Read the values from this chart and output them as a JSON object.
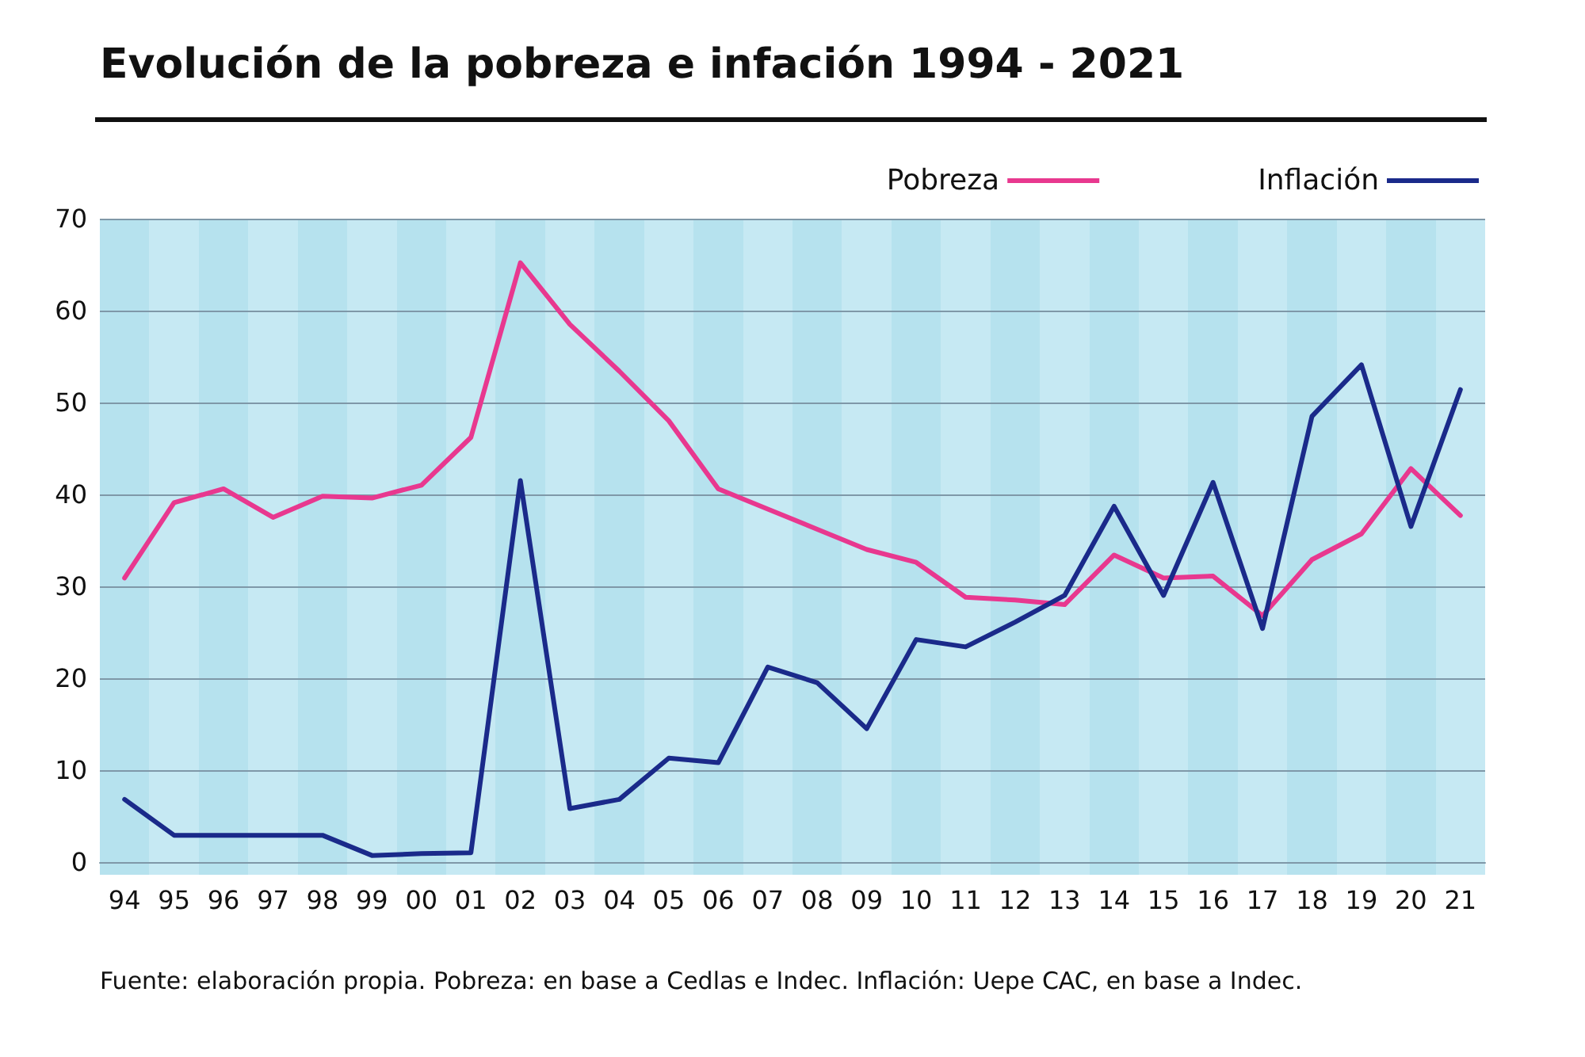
{
  "chart_data": {
    "type": "line",
    "title": "Evolución de la pobreza e infación 1994 - 2021",
    "categories": [
      "94",
      "95",
      "96",
      "97",
      "98",
      "99",
      "00",
      "01",
      "02",
      "03",
      "04",
      "05",
      "06",
      "07",
      "08",
      "09",
      "10",
      "11",
      "12",
      "13",
      "14",
      "15",
      "16",
      "17",
      "18",
      "19",
      "20",
      "21"
    ],
    "series": [
      {
        "name": "Pobreza",
        "color": "#e8388f",
        "values": [
          30.9,
          39.1,
          40.6,
          37.5,
          39.8,
          39.6,
          41.0,
          46.2,
          65.2,
          58.5,
          53.4,
          48.0,
          40.6,
          38.4,
          36.2,
          34.0,
          32.6,
          28.8,
          28.5,
          28.0,
          33.4,
          30.9,
          31.1,
          26.8,
          32.9,
          35.7,
          42.8,
          37.7
        ]
      },
      {
        "name": "Inflación",
        "color": "#1a2a8a",
        "values": [
          6.8,
          2.9,
          2.9,
          2.9,
          2.9,
          0.7,
          0.9,
          1.0,
          41.5,
          5.8,
          6.8,
          11.3,
          10.8,
          21.2,
          19.5,
          14.5,
          24.2,
          23.4,
          26.1,
          29.0,
          38.7,
          29.0,
          41.3,
          25.4,
          48.5,
          54.1,
          36.5,
          51.4
        ]
      }
    ],
    "ylim": [
      -1.4,
      70
    ],
    "yticks": [
      0,
      10,
      20,
      30,
      40,
      50,
      60,
      70
    ],
    "grid": "y",
    "legend": "top right",
    "marker": "none",
    "line_style": "solid",
    "annotations": [
      "Fuente: elaboración propia. Pobreza: en base a Cedlas e Indec. Inflación: Uepe CAC, en base a Indec."
    ]
  }
}
